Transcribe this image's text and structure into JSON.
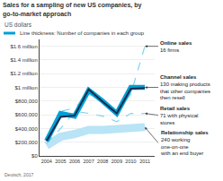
{
  "chart_data": {
    "type": "line",
    "title": "Sales for a sampling of new US companies, by go-to-market approach",
    "subtitle": "US dollars",
    "annotations": [
      {
        "text": "Line thickness: Number of companies in each group",
        "color": "#00a0d6"
      },
      {
        "text": "Deutsch, 2017"
      }
    ],
    "x": [
      2004,
      2005,
      2006,
      2007,
      2008,
      2009,
      2010,
      2011
    ],
    "series": [
      {
        "name": "Relationship sales",
        "annotation": "240 working\none-on-one\nwith an end buyer",
        "color": "#b8e4f5",
        "line_style": "solid",
        "values": [
          150000,
          280000,
          320000,
          380000,
          380000,
          390000,
          420000,
          420000
        ]
      },
      {
        "name": "Retail sales",
        "annotation": "71 with physical\nstores",
        "color": "#7fd4f0",
        "line_style": "dashed",
        "values": [
          180000,
          400000,
          650000,
          620000,
          580000,
          500000,
          620000,
          620000
        ]
      },
      {
        "name": "Online sales",
        "annotation": "16 firms",
        "color": "#7fd4f0",
        "line_style": "dashed",
        "values": [
          250000,
          650000,
          700000,
          900000,
          820000,
          650000,
          900000,
          1600000
        ]
      },
      {
        "name": "Channel sales",
        "annotation": "130 making products\nthat other companies\nthen resell",
        "color": "#00a0d6",
        "line_style": "solid",
        "values": [
          220000,
          620000,
          580000,
          960000,
          800000,
          620000,
          1000000,
          1000000
        ]
      },
      {
        "color": "#1a2a4a",
        "line_style": "solid",
        "values": [
          220000,
          570000,
          590000,
          970000,
          790000,
          620000,
          980000,
          990000
        ]
      }
    ],
    "xlim": [
      2003.5,
      2011.7
    ],
    "xticks": [
      2004,
      2005,
      2006,
      2007,
      2008,
      2009,
      2010,
      2011
    ],
    "ylim": [
      0,
      1700000
    ],
    "yticks": [
      {
        "value": 0,
        "label": "$0"
      },
      {
        "value": 200000,
        "label": "$200,000"
      },
      {
        "value": 400000,
        "label": "$400,000"
      },
      {
        "value": 600000,
        "label": "$600,000"
      },
      {
        "value": 800000,
        "label": "$800,000"
      },
      {
        "value": 1000000,
        "label": "$1 million"
      },
      {
        "value": 1200000,
        "label": "$1.2 million"
      },
      {
        "value": 1400000,
        "label": "$1.4 million"
      },
      {
        "value": 1600000,
        "label": "$1.6 million"
      }
    ],
    "grid": true
  }
}
